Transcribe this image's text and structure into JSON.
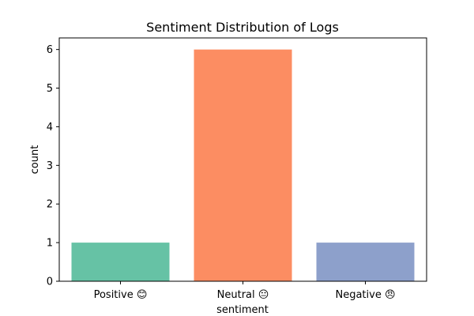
{
  "chart_data": {
    "type": "bar",
    "title": "Sentiment Distribution of Logs",
    "xlabel": "sentiment",
    "ylabel": "count",
    "categories": [
      "Positive 😊",
      "Neutral 😐",
      "Negative 😠"
    ],
    "values": [
      1,
      6,
      1
    ],
    "colors": [
      "#66c2a5",
      "#fc8d62",
      "#8da0cb"
    ],
    "ylim": [
      0,
      6.3
    ],
    "yticks": [
      0,
      1,
      2,
      3,
      4,
      5,
      6
    ],
    "grid": false
  }
}
